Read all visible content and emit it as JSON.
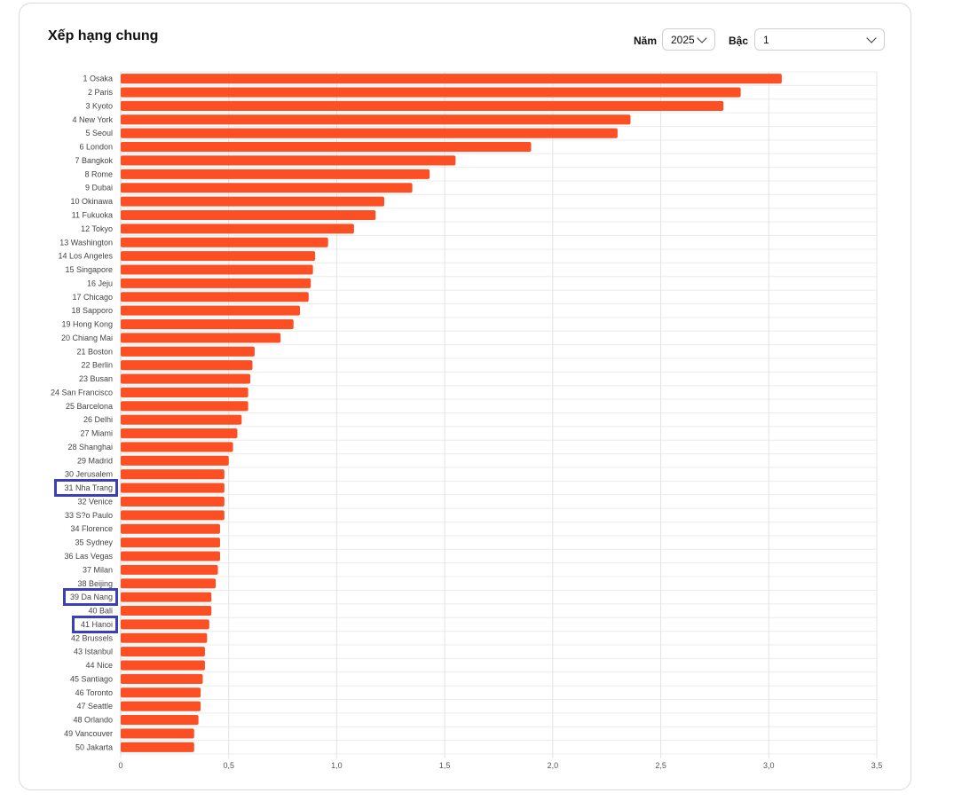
{
  "panel": {
    "title": "Xếp hạng chung",
    "year_label": "Năm",
    "year_value": "2025",
    "level_label": "Bậc",
    "level_value": "1"
  },
  "colors": {
    "bar": "#fc4f23",
    "highlight": "#3b3fb8"
  },
  "highlighted_labels": [
    "31 Nha Trang",
    "39 Da Nang",
    "41 Hanoi"
  ],
  "chart_data": {
    "type": "bar",
    "orientation": "horizontal",
    "title": "",
    "xlabel": "",
    "ylabel": "",
    "xlim": [
      0,
      3.5
    ],
    "x_ticks": [
      "0",
      "0,5",
      "1,0",
      "1,5",
      "2,0",
      "2,5",
      "3,0",
      "3,5"
    ],
    "grid": true,
    "categories": [
      "1 Osaka",
      "2 Paris",
      "3 Kyoto",
      "4 New York",
      "5 Seoul",
      "6 London",
      "7 Bangkok",
      "8 Rome",
      "9 Dubai",
      "10 Okinawa",
      "11 Fukuoka",
      "12 Tokyo",
      "13 Washington",
      "14 Los Angeles",
      "15 Singapore",
      "16 Jeju",
      "17 Chicago",
      "18 Sapporo",
      "19 Hong Kong",
      "20 Chiang Mai",
      "21 Boston",
      "22 Berlin",
      "23 Busan",
      "24 San Francisco",
      "25 Barcelona",
      "26 Delhi",
      "27 Miami",
      "28 Shanghai",
      "29 Madrid",
      "30 Jerusalem",
      "31 Nha Trang",
      "32 Venice",
      "33 S?o Paulo",
      "34 Florence",
      "35 Sydney",
      "36 Las Vegas",
      "37 Milan",
      "38 Beijing",
      "39 Da Nang",
      "40 Bali",
      "41 Hanoi",
      "42 Brussels",
      "43 Istanbul",
      "44 Nice",
      "45 Santiago",
      "46 Toronto",
      "47 Seattle",
      "48 Orlando",
      "49 Vancouver",
      "50 Jakarta"
    ],
    "values": [
      3.06,
      2.87,
      2.79,
      2.36,
      2.3,
      1.9,
      1.55,
      1.43,
      1.35,
      1.22,
      1.18,
      1.08,
      0.96,
      0.9,
      0.89,
      0.88,
      0.87,
      0.83,
      0.8,
      0.74,
      0.62,
      0.61,
      0.6,
      0.59,
      0.59,
      0.56,
      0.54,
      0.52,
      0.5,
      0.48,
      0.48,
      0.48,
      0.48,
      0.46,
      0.46,
      0.46,
      0.45,
      0.44,
      0.42,
      0.42,
      0.41,
      0.4,
      0.39,
      0.39,
      0.38,
      0.37,
      0.37,
      0.36,
      0.34,
      0.34
    ]
  }
}
